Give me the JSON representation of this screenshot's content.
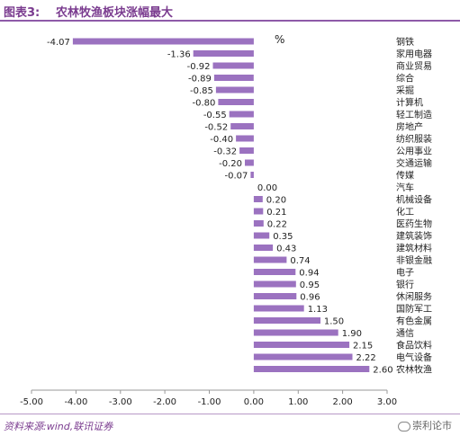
{
  "header": {
    "figure_label": "图表3:",
    "title": "农林牧渔板块涨幅最大"
  },
  "footer": {
    "source": "资料来源:wind,联讯证券",
    "watermark": "崇利论市"
  },
  "colors": {
    "bar": "#9b72c0",
    "title": "#7a3b8f"
  },
  "chart_data": {
    "type": "bar",
    "orientation": "horizontal",
    "title": "农林牧渔板块涨幅最大",
    "unit": "%",
    "xlim": [
      -5,
      3
    ],
    "x_ticks": [
      "-5.00",
      "-4.00",
      "-3.00",
      "-2.00",
      "-1.00",
      "0.00",
      "1.00",
      "2.00",
      "3.00"
    ],
    "grid": false,
    "legend": "none",
    "categories": [
      "钢铁",
      "家用电器",
      "商业贸易",
      "综合",
      "采掘",
      "计算机",
      "轻工制造",
      "房地产",
      "纺织服装",
      "公用事业",
      "交通运输",
      "传媒",
      "汽车",
      "机械设备",
      "化工",
      "医药生物",
      "建筑装饰",
      "建筑材料",
      "非银金融",
      "电子",
      "银行",
      "休闲服务",
      "国防军工",
      "有色金属",
      "通信",
      "食品饮料",
      "电气设备",
      "农林牧渔"
    ],
    "values": [
      -4.07,
      -1.36,
      -0.92,
      -0.89,
      -0.85,
      -0.8,
      -0.55,
      -0.52,
      -0.4,
      -0.32,
      -0.2,
      -0.07,
      0.0,
      0.2,
      0.21,
      0.22,
      0.35,
      0.43,
      0.74,
      0.94,
      0.95,
      0.96,
      1.13,
      1.5,
      1.9,
      2.15,
      2.22,
      2.6
    ],
    "value_labels": [
      "-4.07",
      "-1.36",
      "-0.92",
      "-0.89",
      "-0.85",
      "-0.80",
      "-0.55",
      "-0.52",
      "-0.40",
      "-0.32",
      "-0.20",
      "-0.07",
      "0.00",
      "0.20",
      "0.21",
      "0.22",
      "0.35",
      "0.43",
      "0.74",
      "0.94",
      "0.95",
      "0.96",
      "1.13",
      "1.50",
      "1.90",
      "2.15",
      "2.22",
      "2.60"
    ]
  }
}
